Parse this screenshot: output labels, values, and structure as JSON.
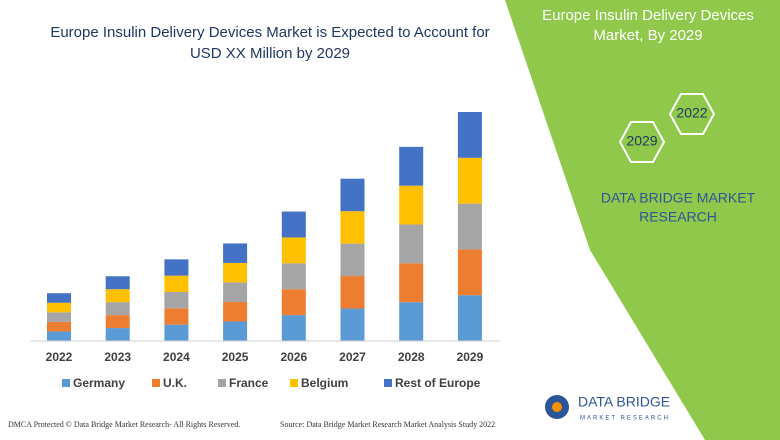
{
  "chart_data": {
    "type": "stacked-bar",
    "title": "Europe Insulin Delivery Devices Market is Expected to Account for",
    "subtitle": "USD XX Million by 2029",
    "categories": [
      "2022",
      "2023",
      "2024",
      "2025",
      "2026",
      "2027",
      "2028",
      "2029"
    ],
    "series": [
      {
        "name": "Germany",
        "color": "#5b9bd5",
        "values": [
          9.6,
          13,
          16.4,
          19.6,
          26,
          32.6,
          39,
          46
        ]
      },
      {
        "name": "U.K.",
        "color": "#ed7d31",
        "values": [
          9.6,
          13,
          16.4,
          19.6,
          26,
          32.6,
          39,
          46
        ]
      },
      {
        "name": "France",
        "color": "#a5a5a5",
        "values": [
          9.6,
          13,
          16.4,
          19.6,
          26,
          32.6,
          39,
          46
        ]
      },
      {
        "name": "Belgium",
        "color": "#ffc000",
        "values": [
          9.6,
          13,
          16.4,
          19.6,
          26,
          32.6,
          39,
          46
        ]
      },
      {
        "name": "Rest of Europe",
        "color": "#4472c4",
        "values": [
          9.6,
          13,
          16.4,
          19.6,
          26,
          32.6,
          39,
          46
        ]
      }
    ],
    "legend": "bottom"
  },
  "panel": {
    "title": "Europe Insulin Delivery Devices",
    "title2": "Market,  By 2029",
    "hex_top": "2022",
    "hex_bottom": "2029",
    "brand": "DATA BRIDGE MARKET",
    "brand2": "RESEARCH",
    "logo": "DATA BRIDGE",
    "logo_sub": "MARKET RESEARCH"
  },
  "footer": {
    "left": "DMCA Protected © Data Bridge Market Research- All Rights Reserved.",
    "right": "Source: Data Bridge Market Research Market Analysis Study 2022"
  }
}
